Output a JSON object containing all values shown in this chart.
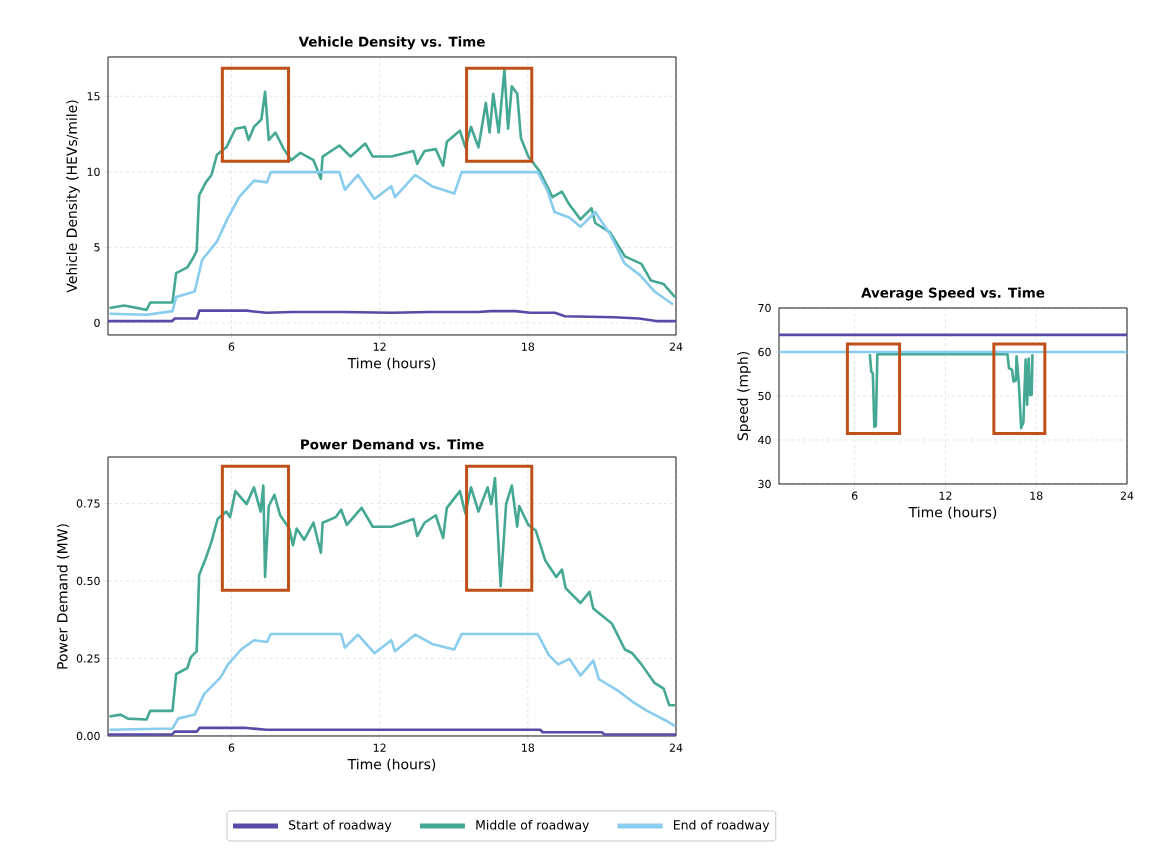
{
  "chart_data": [
    {
      "type": "line",
      "title": "Vehicle Density vs. Time",
      "xlabel": "Time (hours)",
      "ylabel": "Vehicle Density (HEVs/mile)",
      "xlim": [
        1,
        24
      ],
      "ylim": [
        -0.8,
        17.6
      ],
      "xticks": [
        6,
        12,
        18,
        24
      ],
      "yticks": [
        0,
        5,
        10,
        15
      ],
      "grid": true,
      "legend": "bottom",
      "series": [
        {
          "name": "Start of roadway",
          "color": "#5a4aa8",
          "x": [
            1,
            3.6,
            3.7,
            4.6,
            4.7,
            6.6,
            7.4,
            8.5,
            10.5,
            12.5,
            14.0,
            16.0,
            16.5,
            17.5,
            18.1,
            19.1,
            19.5,
            21.5,
            22.5,
            23.2,
            24
          ],
          "values": [
            0.12,
            0.12,
            0.29,
            0.29,
            0.81,
            0.81,
            0.67,
            0.72,
            0.72,
            0.67,
            0.72,
            0.72,
            0.78,
            0.78,
            0.67,
            0.67,
            0.44,
            0.37,
            0.29,
            0.12,
            0.12
          ]
        },
        {
          "name": "Middle of roadway",
          "color": "#44a894",
          "x": [
            1.06,
            1.66,
            2.56,
            2.71,
            3.61,
            3.76,
            4.21,
            4.44,
            4.59,
            4.69,
            4.96,
            5.19,
            5.41,
            5.79,
            6.16,
            6.54,
            6.69,
            6.91,
            7.21,
            7.36,
            7.51,
            7.78,
            8.12,
            8.42,
            8.79,
            9.32,
            9.62,
            9.69,
            10.37,
            10.82,
            11.42,
            11.72,
            12.47,
            13.37,
            13.52,
            13.82,
            14.27,
            14.57,
            14.72,
            15.25,
            15.47,
            15.7,
            16.0,
            16.3,
            16.45,
            16.6,
            16.82,
            17.05,
            17.2,
            17.35,
            17.57,
            17.72,
            18.02,
            18.48,
            19.0,
            19.38,
            19.68,
            20.13,
            20.58,
            20.73,
            21.33,
            21.93,
            22.6,
            22.98,
            23.5,
            23.96
          ],
          "values": [
            0.98,
            1.15,
            0.86,
            1.35,
            1.35,
            3.3,
            3.67,
            4.28,
            4.77,
            8.44,
            9.3,
            9.79,
            11.13,
            11.62,
            12.85,
            12.97,
            12.11,
            12.97,
            13.46,
            15.29,
            12.11,
            12.6,
            11.5,
            10.77,
            11.26,
            10.77,
            9.54,
            11.01,
            11.74,
            11.01,
            11.87,
            11.01,
            11.01,
            11.38,
            10.52,
            11.38,
            11.5,
            10.4,
            11.99,
            12.72,
            11.62,
            12.97,
            11.62,
            14.56,
            12.6,
            15.17,
            12.6,
            16.76,
            12.85,
            15.66,
            15.17,
            12.23,
            11.01,
            10.03,
            8.32,
            8.69,
            7.83,
            6.85,
            7.59,
            6.61,
            5.99,
            4.4,
            3.91,
            2.81,
            2.57,
            1.71
          ]
        },
        {
          "name": "End of roadway",
          "color": "#88ccee",
          "x": [
            1.06,
            2.56,
            3.61,
            3.76,
            4.51,
            4.81,
            5.41,
            5.86,
            6.31,
            6.91,
            7.44,
            7.59,
            10.37,
            10.59,
            11.12,
            11.79,
            12.47,
            12.62,
            13.44,
            14.12,
            15.02,
            15.32,
            18.4,
            18.78,
            19.08,
            19.68,
            20.13,
            20.73,
            21.33,
            21.93,
            22.53,
            23.13,
            23.88
          ],
          "values": [
            0.61,
            0.54,
            0.78,
            1.71,
            2.08,
            4.16,
            5.38,
            6.97,
            8.32,
            9.42,
            9.3,
            9.98,
            9.98,
            8.81,
            9.79,
            8.2,
            9.05,
            8.32,
            9.79,
            9.05,
            8.56,
            9.98,
            9.98,
            8.81,
            7.34,
            6.97,
            6.36,
            7.34,
            5.87,
            3.91,
            3.18,
            2.08,
            1.22
          ]
        }
      ]
    },
    {
      "type": "line",
      "title": "Power Demand vs. Time",
      "xlabel": "Time (hours)",
      "ylabel": "Power Demand (MW)",
      "xlim": [
        1,
        24
      ],
      "ylim": [
        0,
        0.9
      ],
      "xticks": [
        6,
        12,
        18,
        24
      ],
      "yticks": [
        {
          "value": 0,
          "label": "0.00"
        },
        {
          "value": 0.25,
          "label": "0.25"
        },
        {
          "value": 0.5,
          "label": "0.50"
        },
        {
          "value": 0.75,
          "label": "0.75"
        }
      ],
      "grid": true,
      "series": [
        {
          "color": "#5a4aa8",
          "x": [
            1,
            3.6,
            3.7,
            4.6,
            4.7,
            6.6,
            7.4,
            18.5,
            18.6,
            21.0,
            21.1,
            24
          ],
          "values": [
            0.005,
            0.005,
            0.014,
            0.014,
            0.026,
            0.026,
            0.02,
            0.02,
            0.012,
            0.012,
            0.005,
            0.005
          ]
        },
        {
          "color": "#44a894",
          "x": [
            1.06,
            1.51,
            1.81,
            2.56,
            2.71,
            3.61,
            3.76,
            4.21,
            4.36,
            4.59,
            4.69,
            4.96,
            5.19,
            5.44,
            5.79,
            5.94,
            6.16,
            6.61,
            6.91,
            7.18,
            7.29,
            7.36,
            7.51,
            7.74,
            7.97,
            8.34,
            8.49,
            8.64,
            8.94,
            9.32,
            9.62,
            9.69,
            10.22,
            10.44,
            10.67,
            11.27,
            11.72,
            12.47,
            13.37,
            13.52,
            13.82,
            14.27,
            14.57,
            14.72,
            15.25,
            15.47,
            15.7,
            16.0,
            16.37,
            16.52,
            16.67,
            16.9,
            17.12,
            17.35,
            17.57,
            17.65,
            18.02,
            18.32,
            18.7,
            19.15,
            19.38,
            19.53,
            20.13,
            20.5,
            20.65,
            21.4,
            21.93,
            22.23,
            22.6,
            23.13,
            23.5,
            23.73,
            23.96
          ],
          "values": [
            0.063,
            0.069,
            0.056,
            0.053,
            0.081,
            0.081,
            0.2,
            0.219,
            0.255,
            0.273,
            0.519,
            0.573,
            0.627,
            0.7,
            0.724,
            0.706,
            0.79,
            0.748,
            0.802,
            0.724,
            0.808,
            0.513,
            0.742,
            0.778,
            0.712,
            0.669,
            0.615,
            0.669,
            0.633,
            0.688,
            0.591,
            0.688,
            0.706,
            0.73,
            0.681,
            0.736,
            0.675,
            0.675,
            0.7,
            0.645,
            0.688,
            0.712,
            0.639,
            0.736,
            0.79,
            0.718,
            0.802,
            0.724,
            0.802,
            0.748,
            0.832,
            0.483,
            0.748,
            0.808,
            0.675,
            0.742,
            0.681,
            0.663,
            0.567,
            0.513,
            0.537,
            0.477,
            0.429,
            0.465,
            0.411,
            0.363,
            0.279,
            0.267,
            0.231,
            0.171,
            0.153,
            0.099,
            0.099
          ]
        },
        {
          "color": "#88ccee",
          "x": [
            1.06,
            3.61,
            3.84,
            4.51,
            4.89,
            5.56,
            5.86,
            6.39,
            6.91,
            7.44,
            7.59,
            10.44,
            10.59,
            11.12,
            11.79,
            12.47,
            12.62,
            13.44,
            14.12,
            15.02,
            15.32,
            18.4,
            18.85,
            19.23,
            19.68,
            20.13,
            20.65,
            20.88,
            21.63,
            22.23,
            22.83,
            23.58,
            23.96
          ],
          "values": [
            0.02,
            0.024,
            0.056,
            0.069,
            0.135,
            0.189,
            0.231,
            0.279,
            0.309,
            0.303,
            0.329,
            0.329,
            0.285,
            0.327,
            0.267,
            0.309,
            0.273,
            0.327,
            0.297,
            0.279,
            0.329,
            0.329,
            0.261,
            0.231,
            0.249,
            0.195,
            0.243,
            0.183,
            0.147,
            0.111,
            0.081,
            0.05,
            0.032
          ]
        }
      ]
    },
    {
      "type": "line",
      "title": "Average Speed vs. Time",
      "xlabel": "Time (hours)",
      "ylabel": "Speed (mph)",
      "xlim": [
        1,
        24
      ],
      "ylim": [
        30,
        70
      ],
      "xticks": [
        6,
        12,
        18,
        24
      ],
      "yticks": [
        30,
        40,
        50,
        60,
        70
      ],
      "grid": true,
      "series": [
        {
          "color": "#5a4aa8",
          "x": [
            1,
            24
          ],
          "values": [
            63.9,
            63.9
          ]
        },
        {
          "color": "#44a894",
          "x": [
            7.0,
            7.1,
            7.2,
            7.3,
            7.4,
            7.5,
            7.6,
            16.1,
            16.2,
            16.4,
            16.5,
            16.65,
            16.7,
            16.85,
            17.0,
            17.15,
            17.3,
            17.4,
            17.5,
            17.6,
            17.7,
            17.75
          ],
          "values": [
            59.5,
            55.5,
            55.2,
            43.0,
            43.2,
            59.5,
            59.5,
            59.5,
            56.3,
            56.0,
            53.3,
            53.5,
            59.0,
            53.0,
            42.7,
            44.0,
            58.3,
            48.0,
            58.5,
            50.2,
            50.3,
            59.5
          ]
        },
        {
          "color": "#88ccee",
          "x": [
            1,
            24
          ],
          "values": [
            60,
            60
          ]
        }
      ]
    }
  ]
}
